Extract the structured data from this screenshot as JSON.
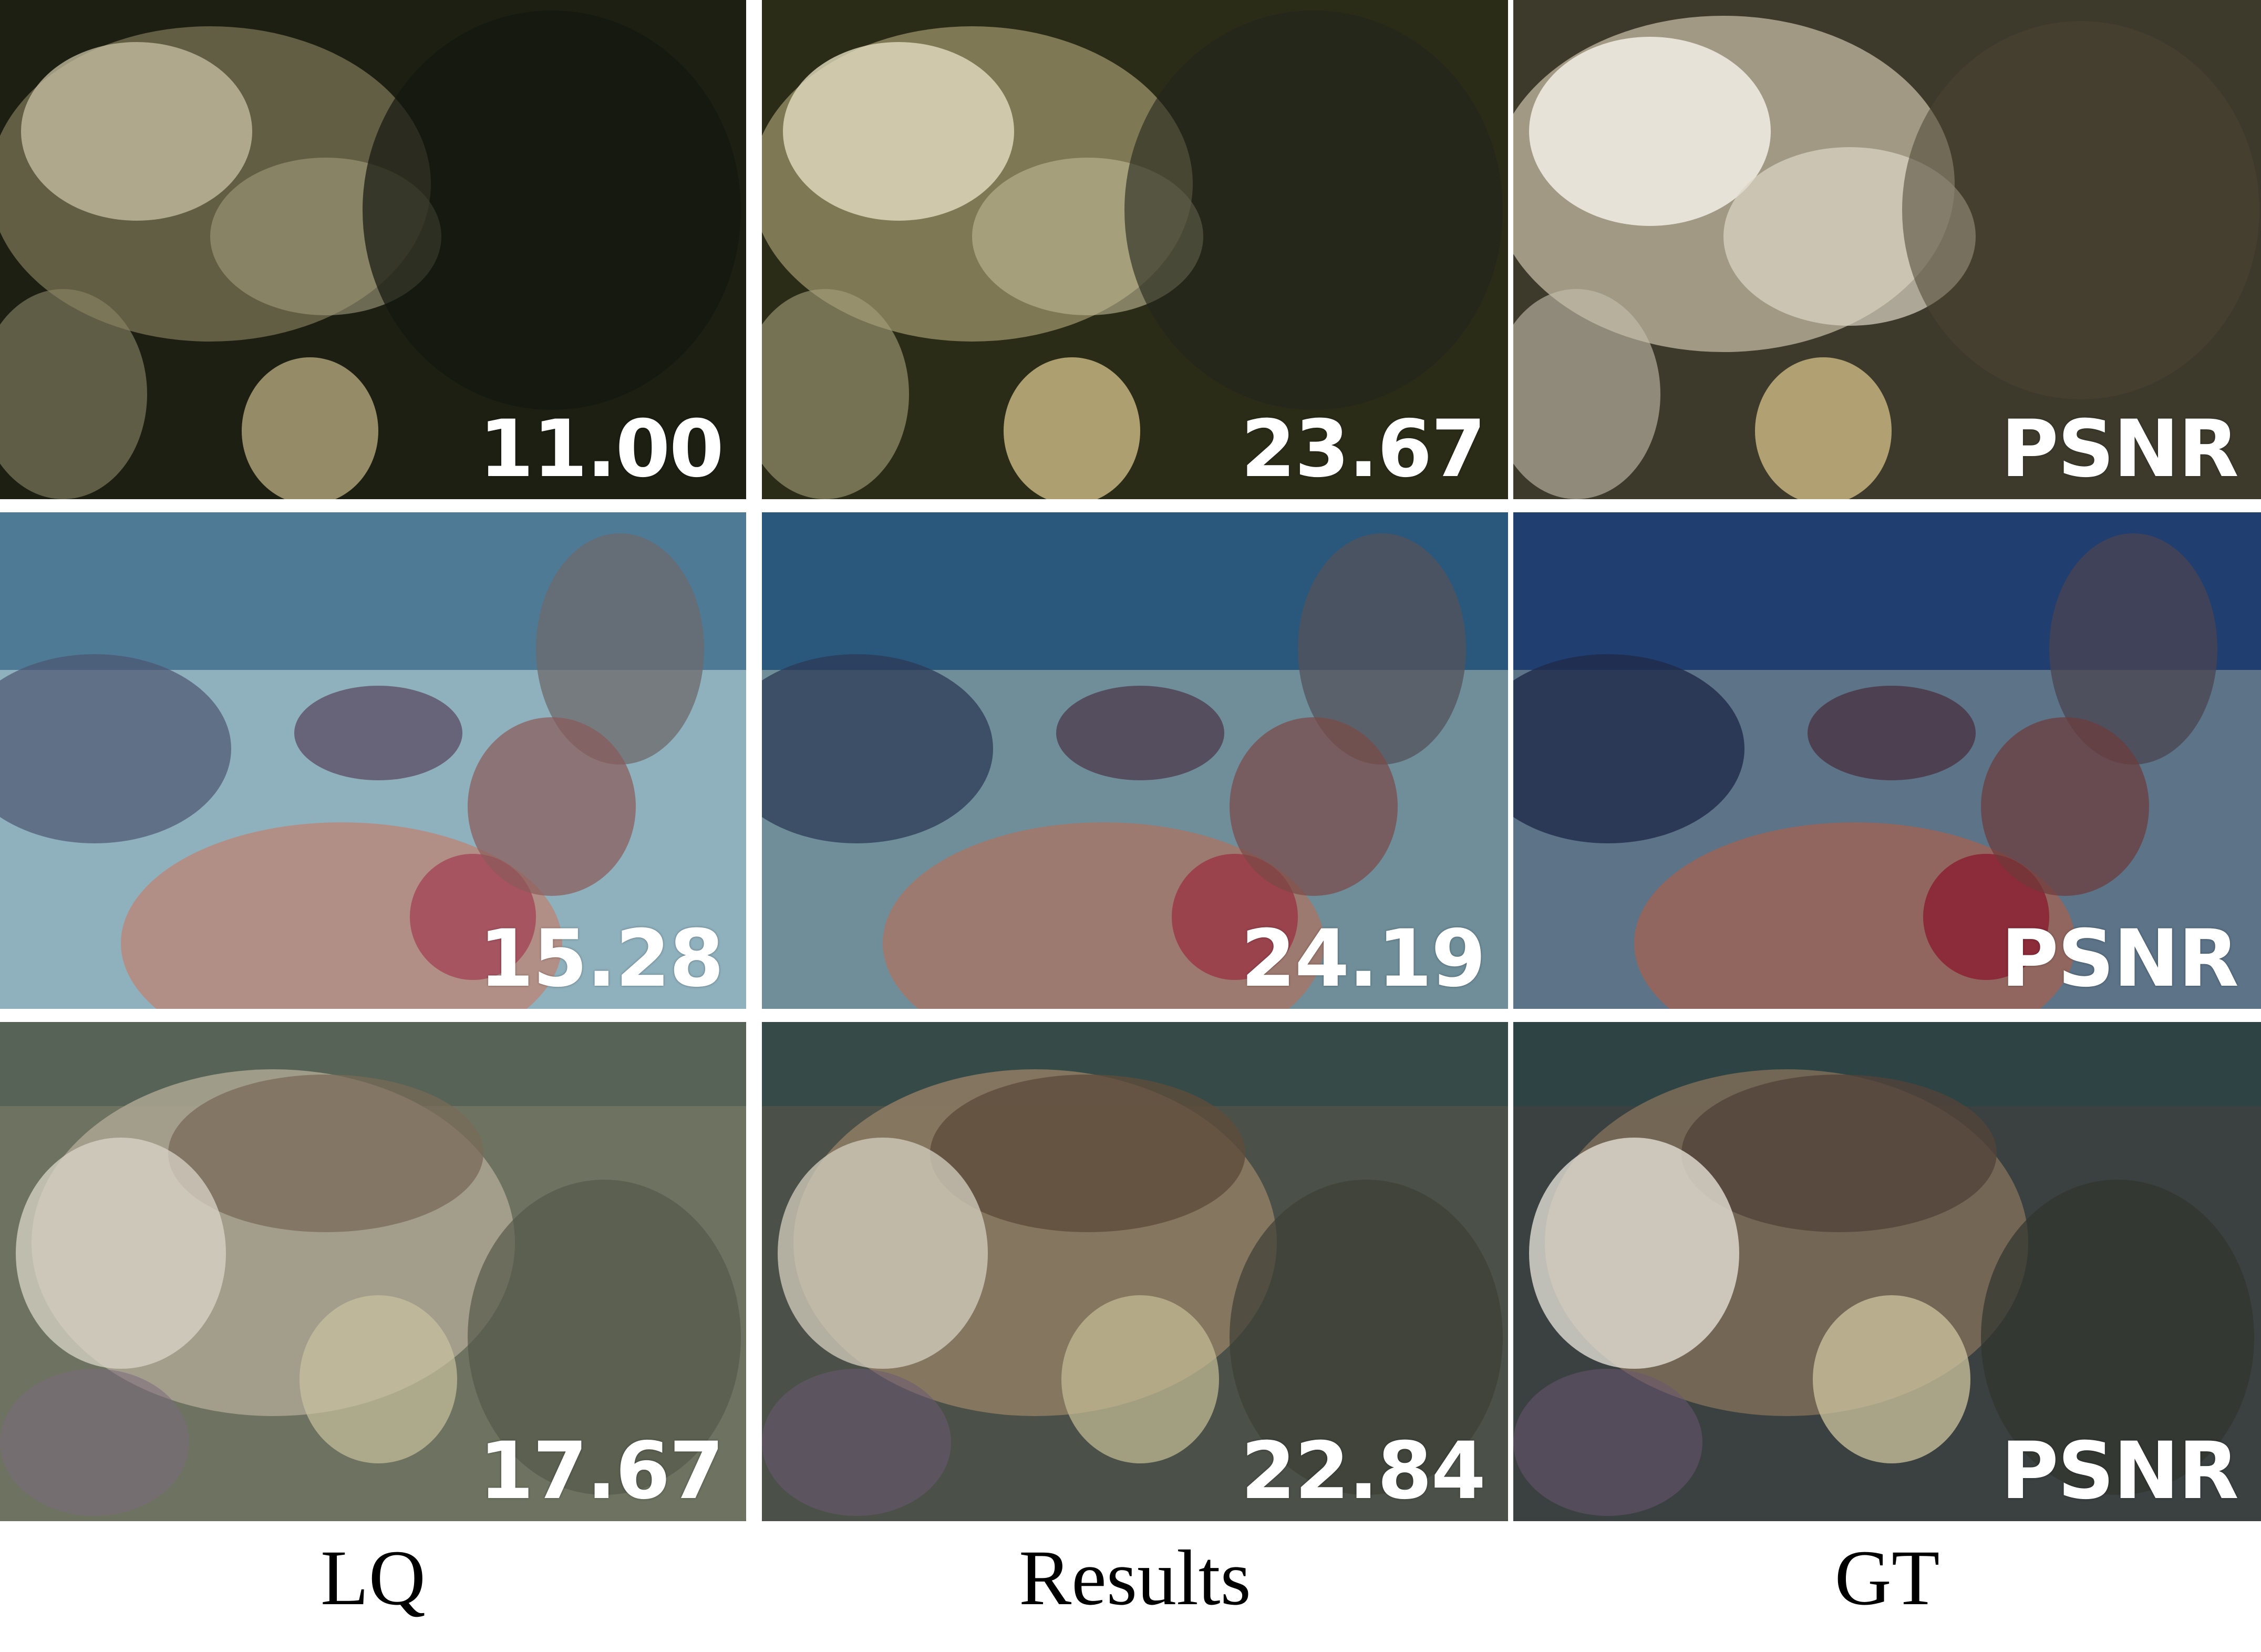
{
  "columns": [
    {
      "label": "LQ"
    },
    {
      "label": "Results"
    },
    {
      "label": "GT"
    }
  ],
  "rows": [
    {
      "scene": "bleached branching coral, dark",
      "cells": [
        {
          "value": "11.00"
        },
        {
          "value": "23.67"
        },
        {
          "value": "PSNR"
        }
      ],
      "palette": [
        [
          "#1c1f12",
          "#6e6a4c",
          "#c9c2a4"
        ],
        [
          "#2a2c18",
          "#8d8660",
          "#e4dcbf"
        ],
        [
          "#3d3a2c",
          "#b3aa94",
          "#f2eee6"
        ]
      ]
    },
    {
      "scene": "reef with table coral, blue water",
      "cells": [
        {
          "value": "15.28"
        },
        {
          "value": "24.19"
        },
        {
          "value": "PSNR"
        }
      ],
      "palette": [
        [
          "#3d6d8c",
          "#8fb0bd",
          "#a44a5a"
        ],
        [
          "#1f4f78",
          "#6f8e9a",
          "#9a3a47"
        ],
        [
          "#19386e",
          "#5c7388",
          "#8c2536"
        ]
      ]
    },
    {
      "scene": "large boulder coral, greenish water",
      "cells": [
        {
          "value": "17.67"
        },
        {
          "value": "22.84"
        },
        {
          "value": "PSNR"
        }
      ],
      "palette": [
        [
          "#6d7360",
          "#a8a290",
          "#d9d6c8"
        ],
        [
          "#4b5148",
          "#8c7a62",
          "#d6d0c0"
        ],
        [
          "#3a4140",
          "#7a6a58",
          "#e2ded4"
        ]
      ]
    }
  ]
}
